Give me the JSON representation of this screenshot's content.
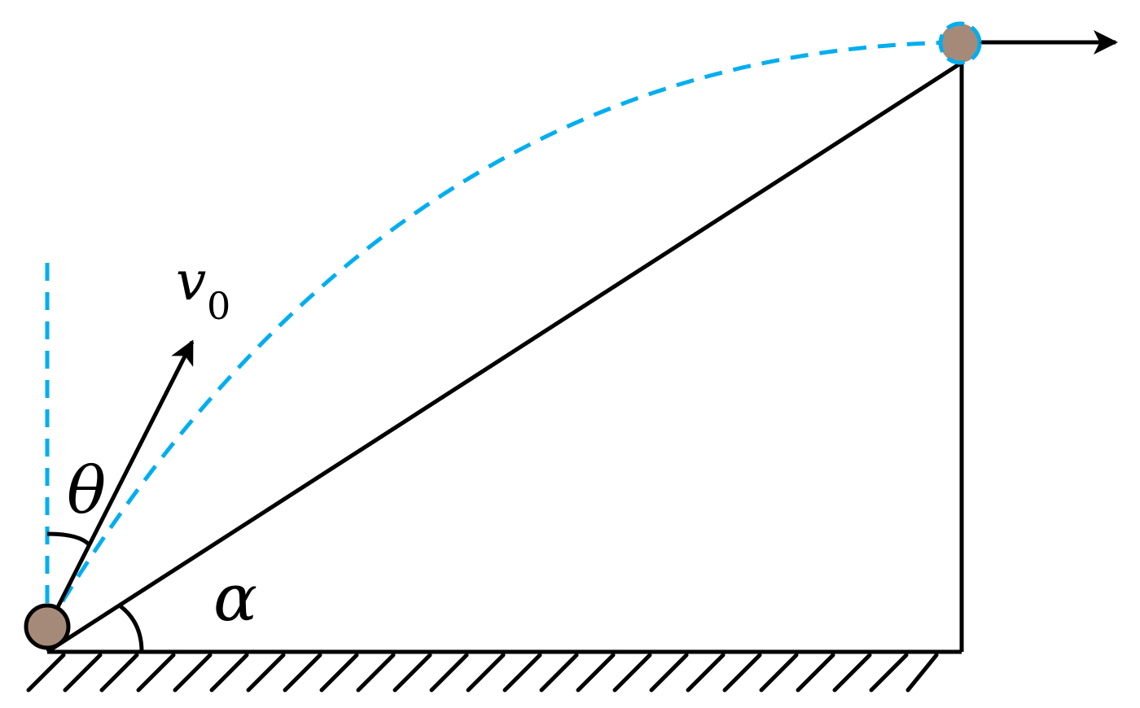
{
  "labels": {
    "velocity_symbol": "v",
    "velocity_subscript": "0",
    "launch_angle": "θ",
    "incline_angle": "α"
  },
  "colors": {
    "trajectory": "#00AEEF",
    "ball_fill": "#A68A79",
    "stroke": "#000000"
  }
}
